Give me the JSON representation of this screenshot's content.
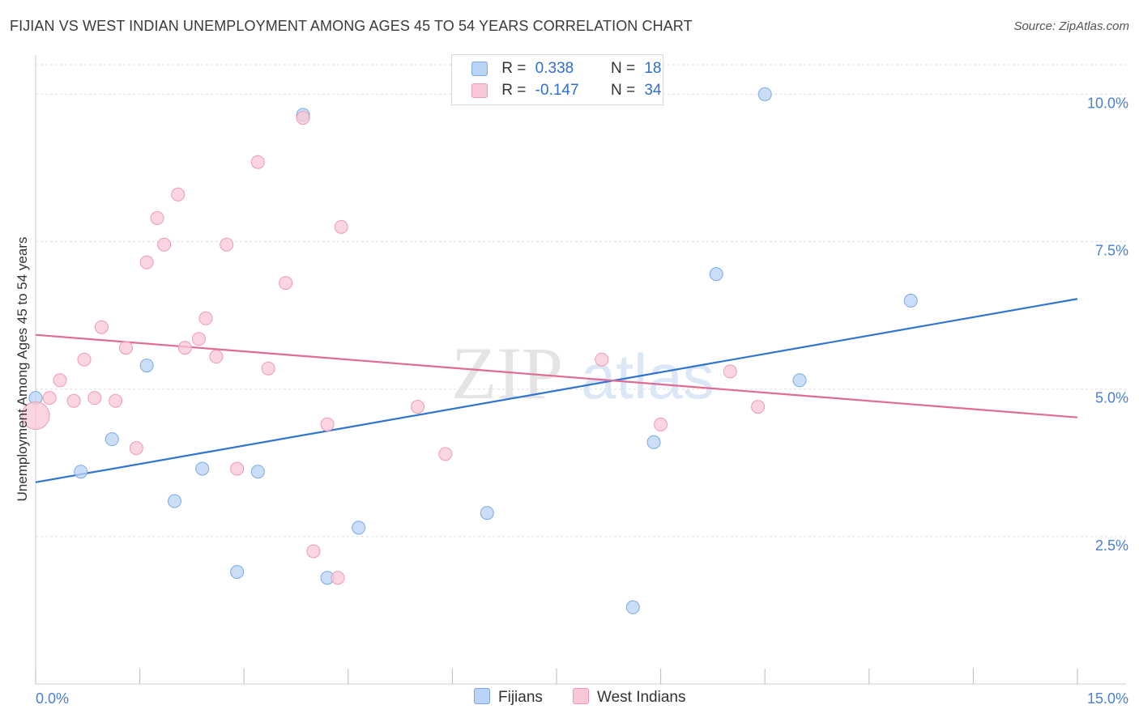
{
  "header": {
    "title": "FIJIAN VS WEST INDIAN UNEMPLOYMENT AMONG AGES 45 TO 54 YEARS CORRELATION CHART",
    "source": "Source: ZipAtlas.com"
  },
  "legend": {
    "rows": [
      {
        "r_label": "R =",
        "r_value": "0.338",
        "n_label": "N =",
        "n_value": "18"
      },
      {
        "r_label": "R =",
        "r_value": "-0.147",
        "n_label": "N =",
        "n_value": "34"
      }
    ]
  },
  "bottom_legend": {
    "fijians": "Fijians",
    "west_indians": "West Indians"
  },
  "watermark": {
    "zip": "ZIP",
    "atlas": "atlas"
  },
  "colors": {
    "fijians_fill": "#b9d3f5",
    "fijians_stroke": "#7aa9e6",
    "fijians_line": "#2f74d0",
    "west_fill": "#f9c7d5",
    "west_stroke": "#ee9ab3",
    "west_line": "#e06b93",
    "grid": "#dddddd",
    "axis_text": "#4a7fd0"
  },
  "chart_data": {
    "type": "scatter",
    "title": "FIJIAN VS WEST INDIAN UNEMPLOYMENT AMONG AGES 45 TO 54 YEARS CORRELATION CHART",
    "xlabel": "",
    "ylabel": "Unemployment Among Ages 45 to 54 years",
    "xlim": [
      0,
      15
    ],
    "ylim": [
      0,
      10.5
    ],
    "x_tick_labels": [
      "0.0%",
      "15.0%"
    ],
    "y_ticks": [
      2.5,
      5.0,
      7.5,
      10.0
    ],
    "y_tick_labels": [
      "2.5%",
      "5.0%",
      "7.5%",
      "10.0%"
    ],
    "grid": true,
    "series": [
      {
        "name": "Fijians",
        "r": 0.338,
        "n": 18,
        "points": [
          [
            0.0,
            4.85
          ],
          [
            0.65,
            3.6
          ],
          [
            1.1,
            4.15
          ],
          [
            1.6,
            5.4
          ],
          [
            2.0,
            3.1
          ],
          [
            2.4,
            3.65
          ],
          [
            2.9,
            1.9
          ],
          [
            3.2,
            3.6
          ],
          [
            3.85,
            9.65
          ],
          [
            4.2,
            1.8
          ],
          [
            4.65,
            2.65
          ],
          [
            6.5,
            2.9
          ],
          [
            8.6,
            1.3
          ],
          [
            8.9,
            4.1
          ],
          [
            9.8,
            6.95
          ],
          [
            10.5,
            10.0
          ],
          [
            11.0,
            5.15
          ],
          [
            12.6,
            6.5
          ]
        ],
        "trend": [
          [
            0.0,
            3.42
          ],
          [
            15.0,
            6.53
          ]
        ]
      },
      {
        "name": "West Indians",
        "r": -0.147,
        "n": 34,
        "points": [
          [
            0.0,
            4.55
          ],
          [
            0.2,
            4.85
          ],
          [
            0.35,
            5.15
          ],
          [
            0.55,
            4.8
          ],
          [
            0.7,
            5.5
          ],
          [
            0.85,
            4.85
          ],
          [
            0.95,
            6.05
          ],
          [
            1.15,
            4.8
          ],
          [
            1.3,
            5.7
          ],
          [
            1.45,
            4.0
          ],
          [
            1.6,
            7.15
          ],
          [
            1.75,
            7.9
          ],
          [
            1.85,
            7.45
          ],
          [
            2.05,
            8.3
          ],
          [
            2.15,
            5.7
          ],
          [
            2.35,
            5.85
          ],
          [
            2.45,
            6.2
          ],
          [
            2.6,
            5.55
          ],
          [
            2.75,
            7.45
          ],
          [
            2.9,
            3.65
          ],
          [
            3.2,
            8.85
          ],
          [
            3.6,
            6.8
          ],
          [
            3.35,
            5.35
          ],
          [
            3.85,
            9.6
          ],
          [
            4.0,
            2.25
          ],
          [
            4.2,
            4.4
          ],
          [
            4.35,
            1.8
          ],
          [
            4.4,
            7.75
          ],
          [
            5.5,
            4.7
          ],
          [
            5.9,
            3.9
          ],
          [
            8.15,
            5.5
          ],
          [
            9.0,
            4.4
          ],
          [
            10.0,
            5.3
          ],
          [
            10.4,
            4.7
          ]
        ],
        "trend": [
          [
            0.0,
            5.92
          ],
          [
            15.0,
            4.52
          ]
        ]
      }
    ]
  }
}
